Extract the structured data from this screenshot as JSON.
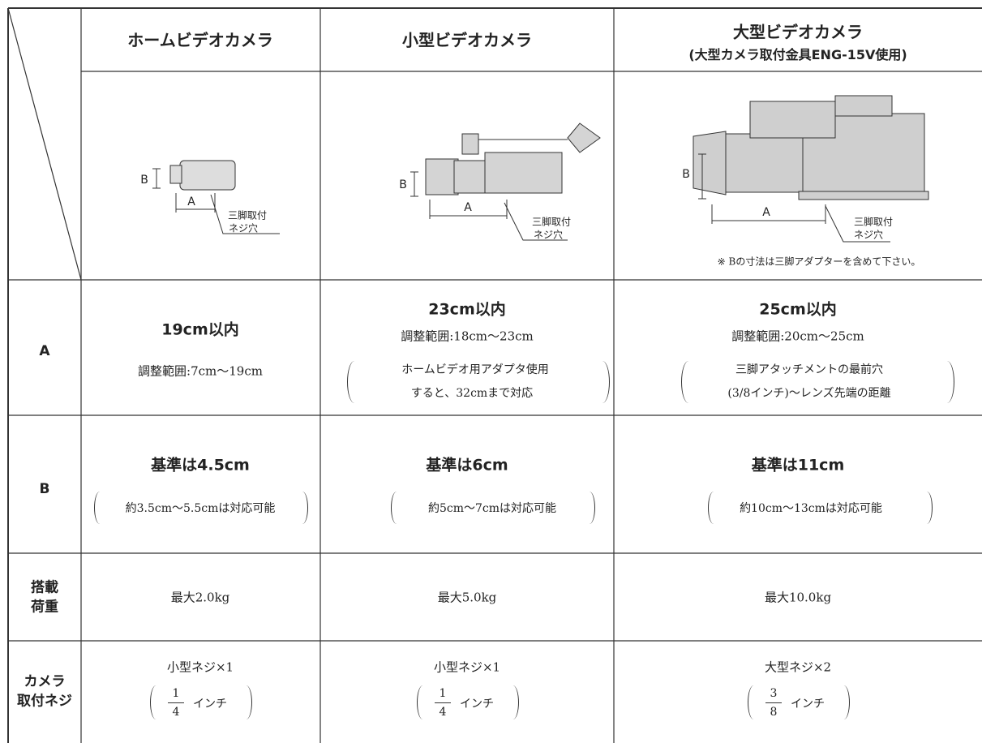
{
  "header": {
    "columns": [
      "ホームビデオカメラ",
      "小型ビデオカメラ",
      "大型ビデオカメラ"
    ],
    "large_note": "(大型カメラ取付金具ENG-15V使用)"
  },
  "diagrams": {
    "dim_a": "A",
    "dim_b": "B",
    "tripod_hole": [
      "三脚取付",
      "ネジ穴"
    ],
    "note": "※ Bの寸法は三脚アダプターを含めて下さい。"
  },
  "rows": [
    {
      "label": [
        "A"
      ],
      "cells": [
        {
          "main": "19cm以内",
          "range": "調整範囲:7cm〜19cm"
        },
        {
          "main": "23cm以内",
          "range": "調整範囲:18cm〜23cm",
          "note": [
            "ホームビデオ用アダプタ使用",
            "すると、32cmまで対応"
          ]
        },
        {
          "main": "25cm以内",
          "range": "調整範囲:20cm〜25cm",
          "note": [
            "三脚アタッチメントの最前穴",
            "(3/8インチ)〜レンズ先端の距離"
          ]
        }
      ]
    },
    {
      "label": [
        "B"
      ],
      "cells": [
        {
          "main": "基準は4.5cm",
          "note": [
            "約3.5cm〜5.5cmは対応可能"
          ]
        },
        {
          "main": "基準は6cm",
          "note": [
            "約5cm〜7cmは対応可能"
          ]
        },
        {
          "main": "基準は11cm",
          "note": [
            "約10cm〜13cmは対応可能"
          ]
        }
      ]
    },
    {
      "label": [
        "搭載",
        "荷重"
      ],
      "cells": [
        {
          "main": "最大2.0kg"
        },
        {
          "main": "最大5.0kg"
        },
        {
          "main": "最大10.0kg"
        }
      ]
    },
    {
      "label": [
        "カメラ",
        "取付ネジ"
      ],
      "cells": [
        {
          "main": "小型ネジ×1",
          "fraction": [
            "1",
            "4"
          ],
          "unit": "インチ"
        },
        {
          "main": "小型ネジ×1",
          "fraction": [
            "1",
            "4"
          ],
          "unit": "インチ"
        },
        {
          "main": "大型ネジ×2",
          "fraction": [
            "3",
            "8"
          ],
          "unit": "インチ"
        }
      ]
    }
  ]
}
